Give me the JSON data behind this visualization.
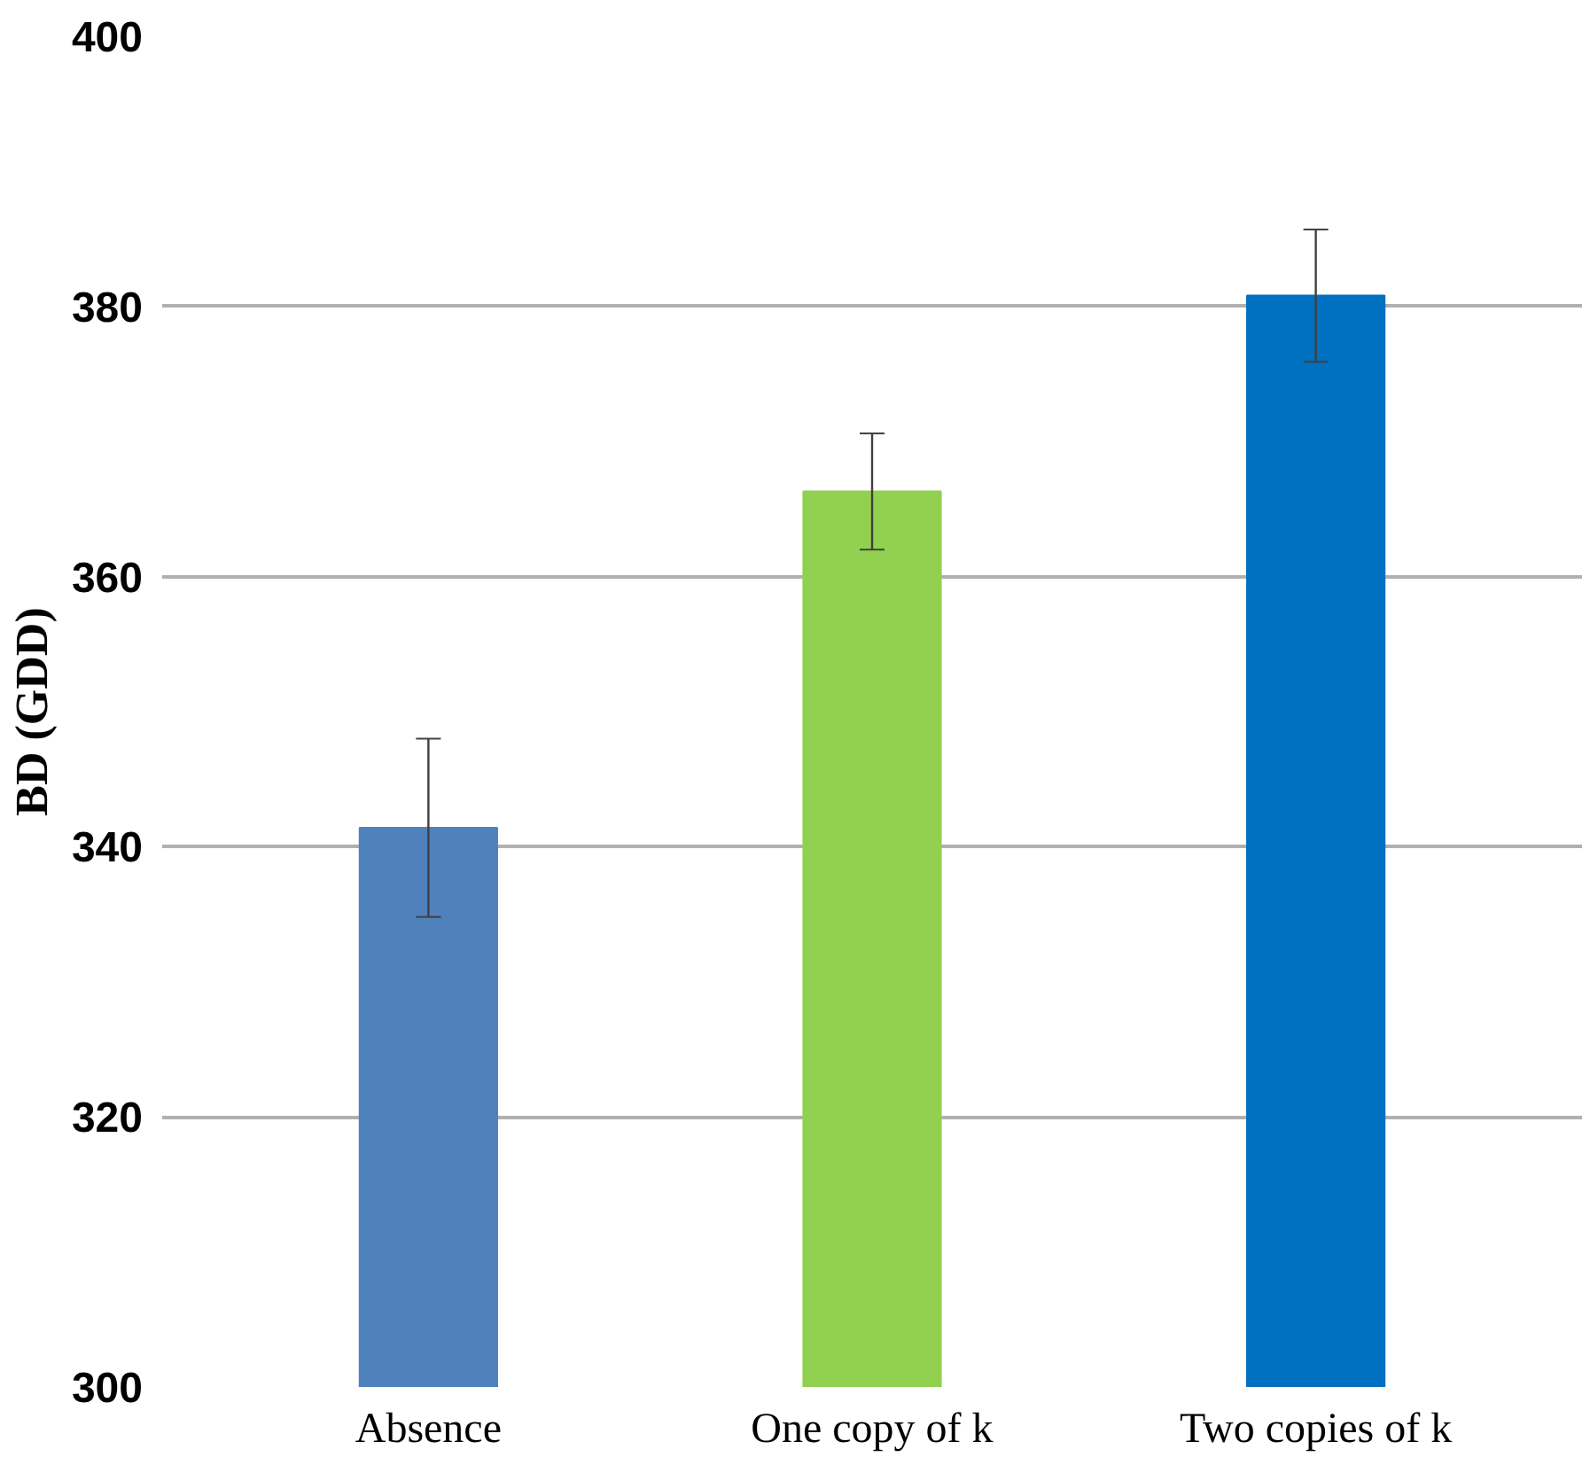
{
  "chart_data": {
    "type": "bar",
    "ylabel": "BD (GDD)",
    "categories": [
      "Absence",
      "One copy of k",
      "Two copies of k"
    ],
    "values": [
      341.4,
      366.3,
      380.8
    ],
    "colors": [
      "#4f81bd",
      "#92d050",
      "#0070c0"
    ],
    "errors": [
      6.6,
      4.3,
      4.9
    ],
    "ylim": [
      300,
      400
    ],
    "yticks": [
      300,
      320,
      340,
      360,
      380,
      400
    ],
    "grid": "y"
  }
}
